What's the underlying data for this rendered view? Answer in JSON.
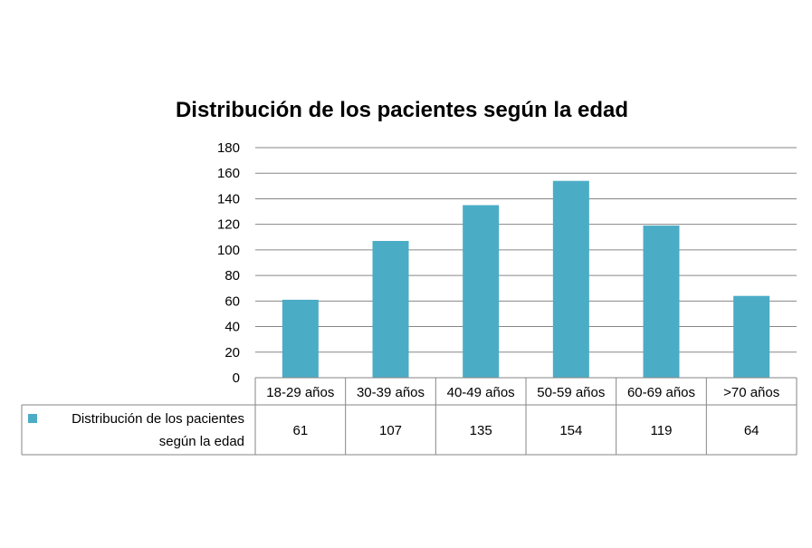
{
  "colors": {
    "bar": "#4BACC6",
    "grid": "#868686",
    "axis": "#868686",
    "text": "#000000"
  },
  "chart_data": {
    "type": "bar",
    "title": "Distribución  de los pacientes según la edad",
    "categories": [
      "18-29 años",
      "30-39 años",
      "40-49 años",
      "50-59 años",
      "60-69 años",
      ">70 años"
    ],
    "series": [
      {
        "name": "Distribución de los pacientes según la edad",
        "values": [
          61,
          107,
          135,
          154,
          119,
          64
        ]
      }
    ],
    "legend_lines": [
      "Distribución de los pacientes",
      "según la edad"
    ],
    "yticks": [
      0,
      20,
      40,
      60,
      80,
      100,
      120,
      140,
      160,
      180
    ],
    "ylim": [
      0,
      180
    ],
    "grid": true,
    "data_table": true
  }
}
